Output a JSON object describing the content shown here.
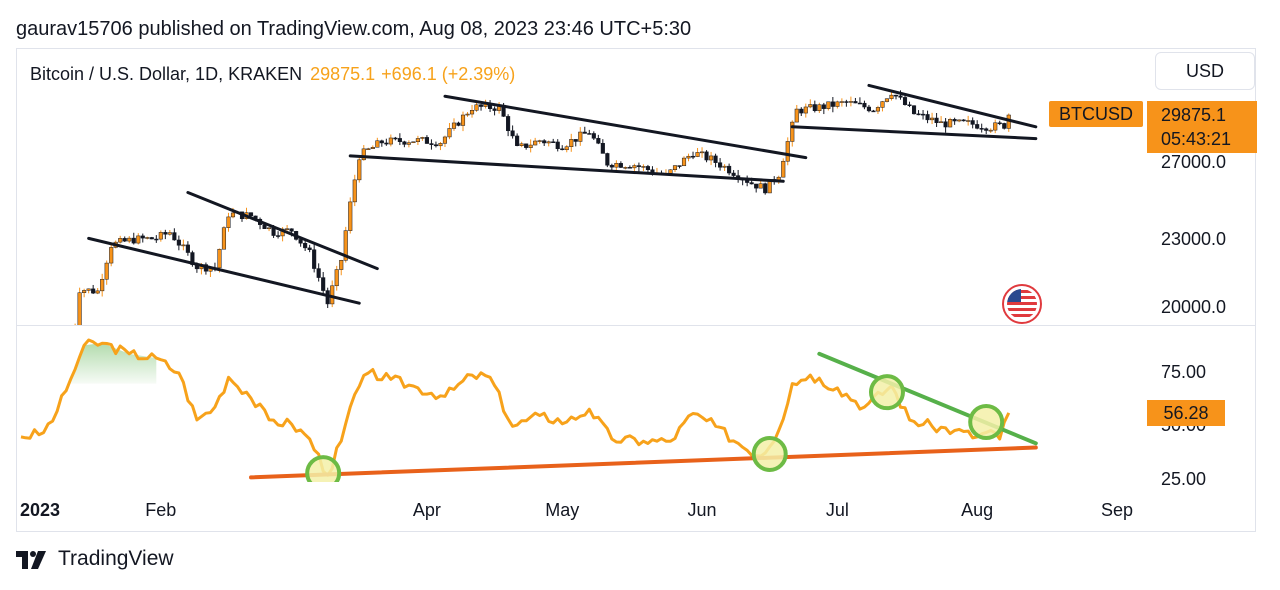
{
  "byline": "gaurav15706 published on TradingView.com, Aug 08, 2023 23:46 UTC+5:30",
  "symbol": {
    "name": "Bitcoin / U.S. Dollar, 1D, KRAKEN",
    "price": "29875.1",
    "change": "+696.1 (+2.39%)"
  },
  "currency_button": "USD",
  "ticker_tag": "BTCUSD",
  "price_tag": {
    "price": "29875.1",
    "countdown": "05:43:21"
  },
  "rsi_tag": "56.28",
  "footer_brand": "TradingView",
  "flag_icon": "us-flag-icon",
  "colors": {
    "candle_up": "#f7931a",
    "candle_down": "#131722",
    "rsi_line": "#f7a21b",
    "support_line": "#e8611a",
    "resistance_line": "#56b04a",
    "circle": "#6dbb45"
  },
  "chart_data": [
    {
      "type": "candlestick",
      "pane": "price",
      "y_ticks": [
        "27000.0",
        "23000.0",
        "20000.0"
      ],
      "x_ticks": [
        "2023",
        "Feb",
        "Apr",
        "May",
        "Jun",
        "Jul",
        "Aug",
        "Sep"
      ],
      "points": [
        {
          "x": "2023-01-12",
          "close": 17900
        },
        {
          "x": "2023-01-14",
          "close": 20800
        },
        {
          "x": "2023-01-18",
          "close": 20700
        },
        {
          "x": "2023-01-21",
          "close": 22800
        },
        {
          "x": "2023-01-26",
          "close": 23050
        },
        {
          "x": "2023-01-31",
          "close": 23100
        },
        {
          "x": "2023-02-03",
          "close": 23400
        },
        {
          "x": "2023-02-09",
          "close": 21800
        },
        {
          "x": "2023-02-13",
          "close": 21750
        },
        {
          "x": "2023-02-16",
          "close": 24300
        },
        {
          "x": "2023-02-21",
          "close": 24200
        },
        {
          "x": "2023-02-26",
          "close": 23400
        },
        {
          "x": "2023-03-02",
          "close": 23500
        },
        {
          "x": "2023-03-06",
          "close": 22400
        },
        {
          "x": "2023-03-10",
          "close": 20200
        },
        {
          "x": "2023-03-13",
          "close": 22100
        },
        {
          "x": "2023-03-15",
          "close": 24800
        },
        {
          "x": "2023-03-17",
          "close": 27400
        },
        {
          "x": "2023-03-22",
          "close": 28200
        },
        {
          "x": "2023-03-29",
          "close": 28300
        },
        {
          "x": "2023-04-04",
          "close": 28200
        },
        {
          "x": "2023-04-11",
          "close": 30300
        },
        {
          "x": "2023-04-17",
          "close": 30300
        },
        {
          "x": "2023-04-21",
          "close": 27800
        },
        {
          "x": "2023-04-26",
          "close": 28300
        },
        {
          "x": "2023-05-01",
          "close": 28000
        },
        {
          "x": "2023-05-07",
          "close": 28800
        },
        {
          "x": "2023-05-11",
          "close": 27000
        },
        {
          "x": "2023-05-17",
          "close": 26900
        },
        {
          "x": "2023-05-24",
          "close": 26300
        },
        {
          "x": "2023-05-30",
          "close": 27600
        },
        {
          "x": "2023-06-03",
          "close": 27200
        },
        {
          "x": "2023-06-08",
          "close": 26500
        },
        {
          "x": "2023-06-12",
          "close": 25900
        },
        {
          "x": "2023-06-15",
          "close": 25600
        },
        {
          "x": "2023-06-18",
          "close": 26400
        },
        {
          "x": "2023-06-20",
          "close": 28200
        },
        {
          "x": "2023-06-22",
          "close": 30100
        },
        {
          "x": "2023-06-27",
          "close": 30300
        },
        {
          "x": "2023-07-03",
          "close": 30600
        },
        {
          "x": "2023-07-09",
          "close": 30200
        },
        {
          "x": "2023-07-13",
          "close": 31300
        },
        {
          "x": "2023-07-18",
          "close": 29900
        },
        {
          "x": "2023-07-24",
          "close": 29300
        },
        {
          "x": "2023-07-30",
          "close": 29300
        },
        {
          "x": "2023-08-04",
          "close": 29100
        },
        {
          "x": "2023-08-07",
          "close": 29200
        },
        {
          "x": "2023-08-08",
          "close": 29875.1
        }
      ],
      "trendlines": [
        [
          [
            "2023-01-16",
            23100
          ],
          [
            "2023-03-17",
            20200
          ]
        ],
        [
          [
            "2023-02-07",
            25400
          ],
          [
            "2023-03-21",
            21700
          ]
        ],
        [
          [
            "2023-03-15",
            27400
          ],
          [
            "2023-06-19",
            26000
          ]
        ],
        [
          [
            "2023-04-05",
            31000
          ],
          [
            "2023-06-24",
            27300
          ]
        ],
        [
          [
            "2023-06-21",
            29100
          ],
          [
            "2023-08-14",
            28400
          ]
        ],
        [
          [
            "2023-07-08",
            31700
          ],
          [
            "2023-08-14",
            29100
          ]
        ]
      ]
    },
    {
      "type": "line",
      "pane": "oscillator",
      "y_ticks": [
        "75.00",
        "50.00",
        "25.00"
      ],
      "series": [
        {
          "values": [
            {
              "x": "2023-01-01",
              "y": 45
            },
            {
              "x": "2023-01-06",
              "y": 47
            },
            {
              "x": "2023-01-09",
              "y": 57
            },
            {
              "x": "2023-01-12",
              "y": 72
            },
            {
              "x": "2023-01-15",
              "y": 88
            },
            {
              "x": "2023-01-19",
              "y": 89
            },
            {
              "x": "2023-01-25",
              "y": 84
            },
            {
              "x": "2023-01-31",
              "y": 82
            },
            {
              "x": "2023-02-05",
              "y": 75
            },
            {
              "x": "2023-02-09",
              "y": 53
            },
            {
              "x": "2023-02-13",
              "y": 59
            },
            {
              "x": "2023-02-16",
              "y": 73
            },
            {
              "x": "2023-02-20",
              "y": 66
            },
            {
              "x": "2023-02-25",
              "y": 53
            },
            {
              "x": "2023-03-02",
              "y": 51
            },
            {
              "x": "2023-03-06",
              "y": 44
            },
            {
              "x": "2023-03-10",
              "y": 27
            },
            {
              "x": "2023-03-13",
              "y": 43
            },
            {
              "x": "2023-03-16",
              "y": 65
            },
            {
              "x": "2023-03-19",
              "y": 75
            },
            {
              "x": "2023-03-24",
              "y": 72
            },
            {
              "x": "2023-03-30",
              "y": 68
            },
            {
              "x": "2023-04-05",
              "y": 64
            },
            {
              "x": "2023-04-11",
              "y": 74
            },
            {
              "x": "2023-04-15",
              "y": 73
            },
            {
              "x": "2023-04-20",
              "y": 50
            },
            {
              "x": "2023-04-26",
              "y": 55
            },
            {
              "x": "2023-05-02",
              "y": 52
            },
            {
              "x": "2023-05-07",
              "y": 58
            },
            {
              "x": "2023-05-12",
              "y": 44
            },
            {
              "x": "2023-05-19",
              "y": 43
            },
            {
              "x": "2023-05-25",
              "y": 43
            },
            {
              "x": "2023-05-30",
              "y": 56
            },
            {
              "x": "2023-06-04",
              "y": 50
            },
            {
              "x": "2023-06-09",
              "y": 42
            },
            {
              "x": "2023-06-14",
              "y": 36
            },
            {
              "x": "2023-06-18",
              "y": 48
            },
            {
              "x": "2023-06-21",
              "y": 70
            },
            {
              "x": "2023-06-25",
              "y": 74
            },
            {
              "x": "2023-07-01",
              "y": 68
            },
            {
              "x": "2023-07-07",
              "y": 59
            },
            {
              "x": "2023-07-13",
              "y": 69
            },
            {
              "x": "2023-07-17",
              "y": 53
            },
            {
              "x": "2023-07-22",
              "y": 50
            },
            {
              "x": "2023-07-27",
              "y": 48
            },
            {
              "x": "2023-08-01",
              "y": 45
            },
            {
              "x": "2023-08-04",
              "y": 48
            },
            {
              "x": "2023-08-06",
              "y": 44
            },
            {
              "x": "2023-08-08",
              "y": 56.28
            }
          ]
        }
      ],
      "trendlines": [
        {
          "color": "support",
          "points": [
            [
              "2023-02-21",
              26
            ],
            [
              "2023-08-14",
              40
            ]
          ]
        },
        {
          "color": "resistance",
          "points": [
            [
              "2023-06-27",
              84
            ],
            [
              "2023-08-14",
              42
            ]
          ]
        }
      ],
      "circled_points": [
        [
          "2023-03-09",
          28
        ],
        [
          "2023-06-16",
          37
        ],
        [
          "2023-07-12",
          66
        ],
        [
          "2023-08-03",
          52
        ]
      ],
      "overbought_fill": {
        "level": 70,
        "from": "2023-01-10",
        "to": "2023-02-03"
      }
    }
  ]
}
